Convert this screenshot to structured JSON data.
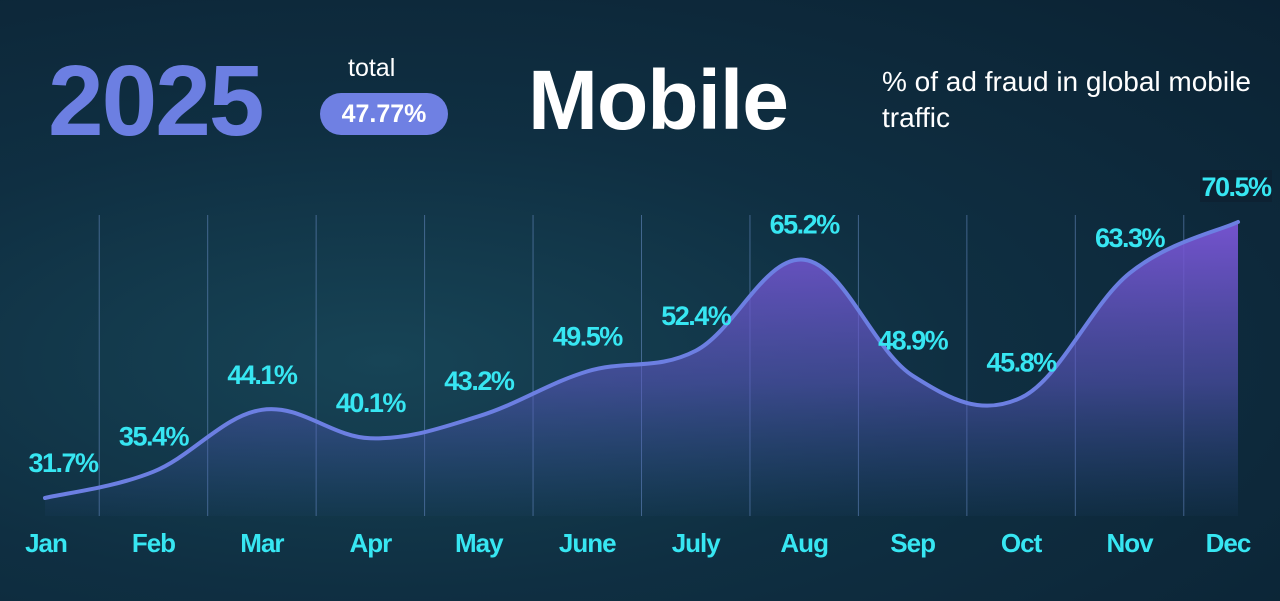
{
  "header": {
    "year": "2025",
    "total_label": "total",
    "total_value": "47.77%",
    "title": "Mobile",
    "subtitle": "% of ad fraud in global mobile traffic"
  },
  "chart_data": {
    "type": "line",
    "categories": [
      "Jan",
      "Feb",
      "Mar",
      "Apr",
      "May",
      "June",
      "July",
      "Aug",
      "Sep",
      "Oct",
      "Nov",
      "Dec"
    ],
    "values": [
      31.7,
      35.4,
      44.1,
      40.1,
      43.2,
      49.5,
      52.4,
      65.2,
      48.9,
      45.8,
      63.3,
      70.5
    ],
    "value_labels": [
      "31.7%",
      "35.4%",
      "44.1%",
      "40.1%",
      "43.2%",
      "49.5%",
      "52.4%",
      "65.2%",
      "48.9%",
      "45.8%",
      "63.3%",
      "70.5%"
    ],
    "color": "#6c7fe2"
  }
}
